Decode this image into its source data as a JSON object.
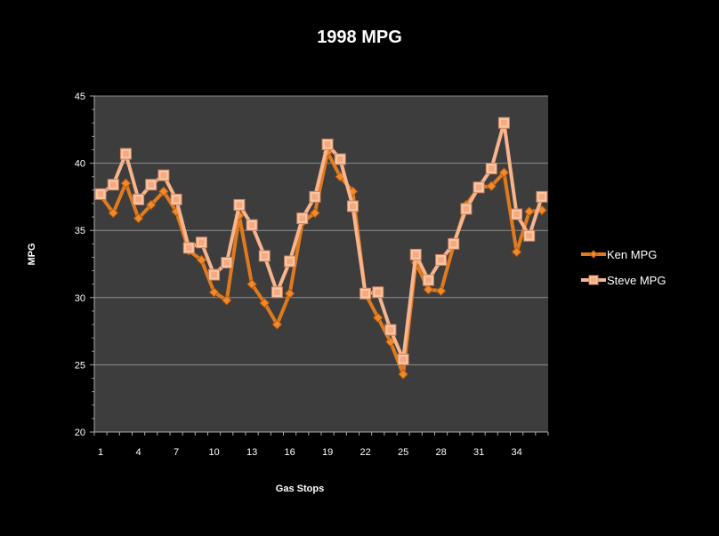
{
  "chart_data": {
    "type": "line",
    "title": "1998 MPG",
    "xlabel": "Gas Stops",
    "ylabel": "MPG",
    "ylim": [
      20,
      45
    ],
    "yticks": [
      20,
      25,
      30,
      35,
      40,
      45
    ],
    "xticks": [
      "1",
      "4",
      "7",
      "10",
      "13",
      "16",
      "19",
      "22",
      "25",
      "28",
      "31",
      "34"
    ],
    "x": [
      1,
      2,
      3,
      4,
      5,
      6,
      7,
      8,
      9,
      10,
      11,
      12,
      13,
      14,
      15,
      16,
      17,
      18,
      19,
      20,
      21,
      22,
      23,
      24,
      25,
      26,
      27,
      28,
      29,
      30,
      31,
      32,
      33,
      34,
      35,
      36
    ],
    "grid": true,
    "legend": "right",
    "colors": {
      "background": "#000000",
      "plot_area": "#3d3d3d",
      "gridline": "#8c8c8c",
      "ken_line": "#e07a1f",
      "ken_marker": "#f08a2a",
      "steve_line": "#f7b48d",
      "steve_marker": "#fbc7a3",
      "text": "#ffffff"
    },
    "series": [
      {
        "name": "Ken MPG",
        "marker": "diamond",
        "values": [
          37.6,
          36.3,
          38.5,
          35.9,
          36.9,
          37.9,
          36.4,
          33.5,
          32.8,
          30.4,
          29.8,
          36.1,
          31.0,
          29.6,
          28.0,
          30.3,
          35.6,
          36.3,
          40.8,
          39.0,
          37.9,
          30.3,
          28.5,
          26.7,
          24.3,
          32.6,
          30.6,
          30.5,
          33.9,
          36.9,
          38.2,
          38.3,
          39.3,
          33.4,
          36.4,
          36.5
        ]
      },
      {
        "name": "Steve MPG",
        "marker": "square",
        "values": [
          37.7,
          38.4,
          40.7,
          37.3,
          38.4,
          39.1,
          37.3,
          33.7,
          34.1,
          31.7,
          32.6,
          36.9,
          35.4,
          33.1,
          30.4,
          32.7,
          35.9,
          37.5,
          41.4,
          40.3,
          36.8,
          30.3,
          30.4,
          27.6,
          25.4,
          33.2,
          31.3,
          32.8,
          34.0,
          36.6,
          38.2,
          39.6,
          43.0,
          36.2,
          34.6,
          37.5
        ]
      }
    ]
  }
}
